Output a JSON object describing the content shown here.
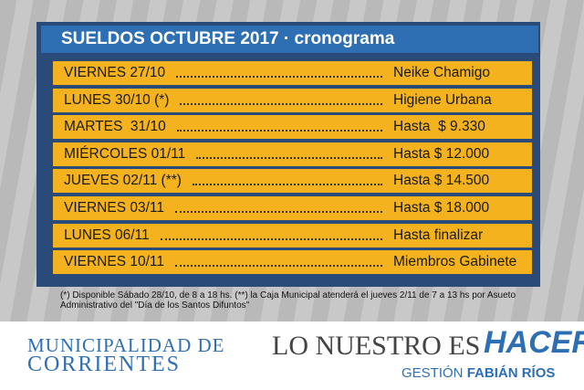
{
  "title": "SUELDOS OCTUBRE 2017 · cronograma",
  "rows": [
    {
      "date": "VIERNES 27/10",
      "label": "Neike Chamigo"
    },
    {
      "date": "LUNES 30/10 (*)",
      "label": "Higiene Urbana"
    },
    {
      "date": "MARTES  31/10",
      "label": "Hasta  $ 9.330"
    },
    {
      "date": "MIÉRCOLES 01/11",
      "label": "Hasta $ 12.000"
    },
    {
      "date": "JUEVES 02/11 (**)",
      "label": "Hasta $ 14.500"
    },
    {
      "date": "VIERNES 03/11",
      "label": "Hasta $ 18.000"
    },
    {
      "date": "LUNES 06/11",
      "label": "Hasta finalizar"
    },
    {
      "date": "VIERNES 10/11",
      "label": "Miembros Gabinete"
    }
  ],
  "footnote": "(*) Disponible Sábado 28/10, de 8 a 18 hs.  (**) la Caja Municipal atenderá el jueves 2/11 de 7 a 13 hs por Asueto Administrativo del \"Día de los Santos Difuntos\"",
  "footer": {
    "municipality_line1": "MUNICIPALIDAD DE",
    "municipality_line2": "CORRIENTES",
    "slogan": "LO NUESTRO ES",
    "slogan_brand": "HACER",
    "gestion": "GESTIÓN",
    "gestion_name": "FABIÁN RÍOS"
  }
}
